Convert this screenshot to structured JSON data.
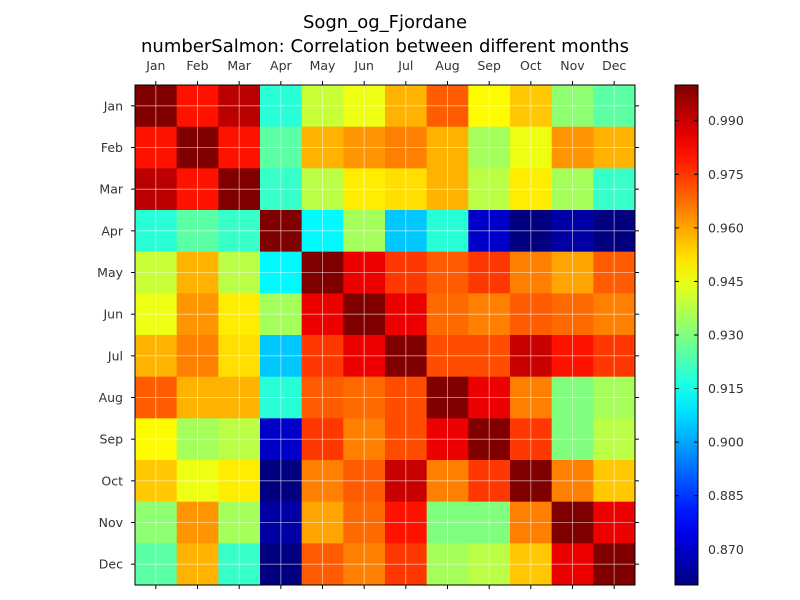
{
  "chart_data": {
    "type": "heatmap",
    "title": "Sogn_og_Fjordane",
    "subtitle": "numberSalmon: Correlation between different months",
    "rows": [
      "Jan",
      "Feb",
      "Mar",
      "Apr",
      "May",
      "Jun",
      "Jul",
      "Aug",
      "Sep",
      "Oct",
      "Nov",
      "Dec"
    ],
    "columns": [
      "Jan",
      "Feb",
      "Mar",
      "Apr",
      "May",
      "Jun",
      "Jul",
      "Aug",
      "Sep",
      "Oct",
      "Nov",
      "Dec"
    ],
    "values": [
      [
        1.0,
        0.98,
        0.992,
        0.918,
        0.94,
        0.945,
        0.958,
        0.97,
        0.948,
        0.955,
        0.932,
        0.925
      ],
      [
        0.98,
        1.0,
        0.98,
        0.925,
        0.958,
        0.962,
        0.965,
        0.958,
        0.935,
        0.945,
        0.962,
        0.958
      ],
      [
        0.992,
        0.98,
        1.0,
        0.92,
        0.938,
        0.95,
        0.952,
        0.958,
        0.938,
        0.95,
        0.935,
        0.92
      ],
      [
        0.918,
        0.925,
        0.92,
        1.0,
        0.912,
        0.935,
        0.905,
        0.918,
        0.87,
        0.86,
        0.865,
        0.86
      ],
      [
        0.94,
        0.958,
        0.938,
        0.912,
        1.0,
        0.985,
        0.975,
        0.97,
        0.975,
        0.965,
        0.96,
        0.97
      ],
      [
        0.945,
        0.962,
        0.95,
        0.935,
        0.985,
        1.0,
        0.985,
        0.968,
        0.965,
        0.97,
        0.968,
        0.965
      ],
      [
        0.958,
        0.965,
        0.952,
        0.905,
        0.975,
        0.985,
        1.0,
        0.972,
        0.972,
        0.99,
        0.98,
        0.975
      ],
      [
        0.97,
        0.958,
        0.958,
        0.918,
        0.97,
        0.968,
        0.972,
        1.0,
        0.985,
        0.965,
        0.93,
        0.935
      ],
      [
        0.948,
        0.935,
        0.938,
        0.87,
        0.975,
        0.965,
        0.972,
        0.985,
        1.0,
        0.975,
        0.93,
        0.938
      ],
      [
        0.955,
        0.945,
        0.95,
        0.86,
        0.965,
        0.97,
        0.99,
        0.965,
        0.975,
        1.0,
        0.965,
        0.955
      ],
      [
        0.932,
        0.962,
        0.935,
        0.865,
        0.96,
        0.968,
        0.98,
        0.93,
        0.93,
        0.965,
        1.0,
        0.985
      ],
      [
        0.925,
        0.958,
        0.92,
        0.86,
        0.97,
        0.965,
        0.975,
        0.935,
        0.938,
        0.955,
        0.985,
        1.0
      ]
    ],
    "colormap": "jet",
    "colorbar": {
      "min": 0.86,
      "max": 1.0,
      "ticks": [
        0.87,
        0.885,
        0.9,
        0.915,
        0.93,
        0.945,
        0.96,
        0.975,
        0.99
      ],
      "tick_labels": [
        "0.870",
        "0.885",
        "0.900",
        "0.915",
        "0.930",
        "0.945",
        "0.960",
        "0.975",
        "0.990"
      ]
    },
    "xaxis_position": "top",
    "grid": true
  }
}
